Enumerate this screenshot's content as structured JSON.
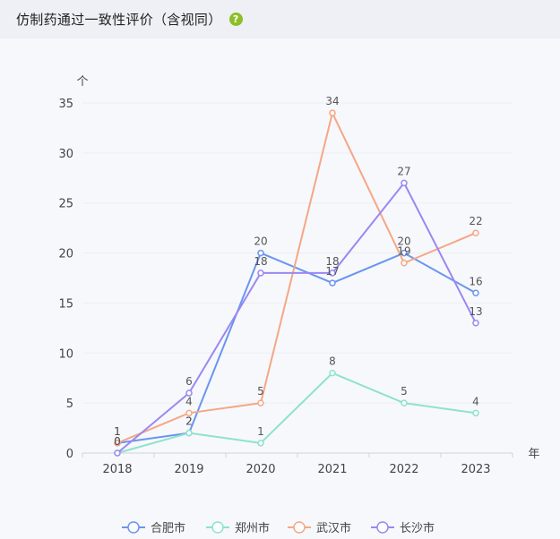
{
  "header": {
    "title": "仿制药通过一致性评价（含视同）",
    "help_icon": "question-circle-icon",
    "help_glyph": "?"
  },
  "chart_data": {
    "type": "line",
    "x": [
      "2018",
      "2019",
      "2020",
      "2021",
      "2022",
      "2023"
    ],
    "ylim": [
      0,
      35
    ],
    "yticks": [
      0,
      5,
      10,
      15,
      20,
      25,
      30,
      35
    ],
    "xlabel": "年",
    "ylabel": "个",
    "grid": true,
    "legend_position": "bottom-center",
    "series": [
      {
        "name": "合肥市",
        "color": "#6a95f0",
        "values": [
          1,
          2,
          20,
          17,
          20,
          16
        ]
      },
      {
        "name": "郑州市",
        "color": "#8de3cb",
        "values": [
          0,
          2,
          1,
          8,
          5,
          4
        ]
      },
      {
        "name": "武汉市",
        "color": "#f5a785",
        "values": [
          1,
          4,
          5,
          34,
          19,
          22
        ]
      },
      {
        "name": "长沙市",
        "color": "#9b87f2",
        "values": [
          0,
          6,
          18,
          18,
          27,
          13
        ]
      }
    ]
  }
}
